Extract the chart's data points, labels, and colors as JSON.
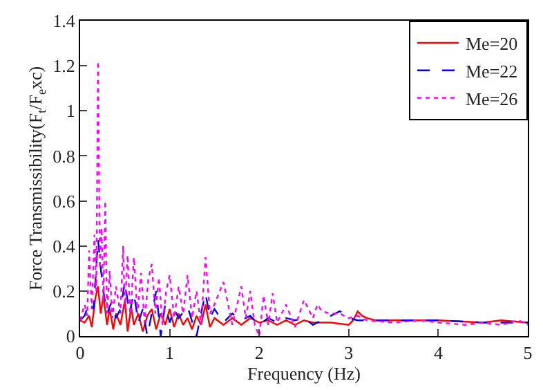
{
  "chart_data": {
    "type": "line",
    "xlabel": "Frequency (Hz)",
    "ylabel": "Force Transmissibility(F$_{t}$/F$_{e}$xc)",
    "xlim": [
      0,
      5
    ],
    "ylim": [
      0,
      1.4
    ],
    "xticks": [
      0,
      1,
      2,
      3,
      4,
      5
    ],
    "yticks": [
      0,
      0.2,
      0.4,
      0.6,
      0.8,
      1,
      1.2,
      1.4
    ],
    "legend": "top right",
    "marker": "none",
    "series": [
      {
        "name": "Me=20",
        "color": "#ff0000",
        "line_style": "solid",
        "x": [
          0,
          0.05,
          0.1,
          0.13,
          0.17,
          0.2,
          0.23,
          0.26,
          0.3,
          0.33,
          0.37,
          0.4,
          0.45,
          0.5,
          0.53,
          0.57,
          0.6,
          0.65,
          0.7,
          0.75,
          0.8,
          0.85,
          0.9,
          0.95,
          1.0,
          1.05,
          1.1,
          1.15,
          1.2,
          1.25,
          1.3,
          1.35,
          1.4,
          1.45,
          1.5,
          1.6,
          1.7,
          1.8,
          1.9,
          2.0,
          2.1,
          2.2,
          2.3,
          2.4,
          2.5,
          2.6,
          2.8,
          3.0,
          3.05,
          3.1,
          3.15,
          3.2,
          3.3,
          3.5,
          4.0,
          4.5,
          4.7,
          5.0
        ],
        "values": [
          0.07,
          0.06,
          0.09,
          0.04,
          0.17,
          0.22,
          0.1,
          0.18,
          0.05,
          0.12,
          0.03,
          0.1,
          0.05,
          0.16,
          0.02,
          0.13,
          0.05,
          0.1,
          0.02,
          0.09,
          0.12,
          0.03,
          0.1,
          0.05,
          0.12,
          0.04,
          0.1,
          0.05,
          0.08,
          0.03,
          0.09,
          0.05,
          0.14,
          0.04,
          0.08,
          0.05,
          0.08,
          0.05,
          0.08,
          0.06,
          0.07,
          0.05,
          0.07,
          0.05,
          0.07,
          0.06,
          0.06,
          0.05,
          0.07,
          0.11,
          0.09,
          0.08,
          0.07,
          0.07,
          0.07,
          0.06,
          0.07,
          0.06
        ]
      },
      {
        "name": "Me=22",
        "color": "#0000ff",
        "line_style": "dashed",
        "x": [
          0,
          0.05,
          0.1,
          0.15,
          0.2,
          0.23,
          0.26,
          0.3,
          0.35,
          0.4,
          0.45,
          0.5,
          0.55,
          0.6,
          0.65,
          0.7,
          0.75,
          0.8,
          0.85,
          0.9,
          0.95,
          1.0,
          1.05,
          1.1,
          1.2,
          1.3,
          1.35,
          1.4,
          1.45,
          1.5,
          1.6,
          1.7,
          1.8,
          1.9,
          2.0,
          2.1,
          2.2,
          2.3,
          2.4,
          2.5,
          2.6,
          2.7,
          2.8,
          2.9,
          2.95,
          3.0,
          3.1,
          3.2,
          3.5,
          4.0,
          4.5,
          5.0
        ],
        "values": [
          0.07,
          0.09,
          0.15,
          0.12,
          0.43,
          0.3,
          0.2,
          0.1,
          0.15,
          0.08,
          0.12,
          0.24,
          0.1,
          0.19,
          0.06,
          0.12,
          0.0,
          0.1,
          0.2,
          0.0,
          0.14,
          0.06,
          0.12,
          0.08,
          0.13,
          0.0,
          0.1,
          0.19,
          0.08,
          0.12,
          0.06,
          0.1,
          0.07,
          0.09,
          0.05,
          0.08,
          0.06,
          0.08,
          0.07,
          0.08,
          0.05,
          0.07,
          0.09,
          0.11,
          0.1,
          0.08,
          0.07,
          0.07,
          0.07,
          0.07,
          0.06,
          0.06
        ]
      },
      {
        "name": "Me=26",
        "color": "#ff00ff",
        "line_style": "dotted",
        "x": [
          0,
          0.05,
          0.08,
          0.1,
          0.13,
          0.16,
          0.18,
          0.2,
          0.22,
          0.24,
          0.26,
          0.28,
          0.3,
          0.33,
          0.36,
          0.4,
          0.45,
          0.48,
          0.5,
          0.53,
          0.56,
          0.6,
          0.64,
          0.68,
          0.72,
          0.76,
          0.8,
          0.84,
          0.88,
          0.92,
          0.96,
          1.0,
          1.05,
          1.1,
          1.15,
          1.2,
          1.25,
          1.3,
          1.35,
          1.4,
          1.45,
          1.5,
          1.6,
          1.7,
          1.8,
          1.85,
          1.9,
          1.95,
          2.0,
          2.05,
          2.1,
          2.15,
          2.2,
          2.3,
          2.4,
          2.5,
          2.6,
          2.65,
          2.7,
          2.8,
          2.9,
          3.0,
          3.1,
          3.2,
          3.5,
          3.8,
          4.0,
          4.3,
          4.5,
          4.7,
          4.9,
          5.0
        ],
        "values": [
          0.07,
          0.14,
          0.09,
          0.38,
          0.12,
          0.45,
          0.2,
          1.22,
          0.3,
          0.48,
          0.15,
          0.6,
          0.1,
          0.29,
          0.08,
          0.22,
          0.1,
          0.4,
          0.12,
          0.36,
          0.08,
          0.35,
          0.1,
          0.28,
          0.06,
          0.25,
          0.32,
          0.1,
          0.26,
          0.05,
          0.2,
          0.27,
          0.08,
          0.22,
          0.1,
          0.27,
          0.08,
          0.2,
          0.05,
          0.35,
          0.1,
          0.14,
          0.24,
          0.05,
          0.22,
          0.08,
          0.2,
          0.05,
          0.0,
          0.18,
          0.05,
          0.19,
          0.06,
          0.14,
          0.04,
          0.16,
          0.08,
          0.14,
          0.11,
          0.1,
          0.1,
          0.08,
          0.09,
          0.07,
          0.06,
          0.07,
          0.06,
          0.05,
          0.06,
          0.05,
          0.07,
          0.05
        ]
      }
    ]
  }
}
